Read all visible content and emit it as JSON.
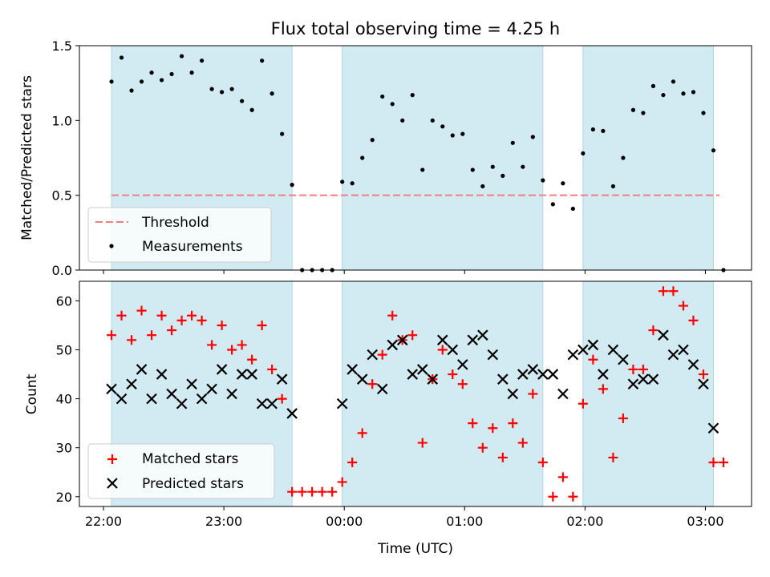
{
  "chart_data": {
    "type": "scatter",
    "title": "Flux total observing time = 4.25 h",
    "xlabel": "Time (UTC)",
    "x_tick_labels": [
      "22:00",
      "23:00",
      "00:00",
      "01:00",
      "02:00",
      "03:00"
    ],
    "x_ticks_min": [
      0,
      60,
      120,
      180,
      240,
      300
    ],
    "xlim_min": [
      -12,
      323
    ],
    "shaded_intervals_min": [
      [
        4,
        94
      ],
      [
        119,
        219
      ],
      [
        239,
        304
      ]
    ],
    "shade_color": "#add8e6",
    "panels": [
      {
        "ylabel": "Matched/Predicted stars",
        "ylim": [
          0,
          1.5
        ],
        "y_ticks": [
          0.0,
          0.5,
          1.0,
          1.5
        ],
        "y_tick_labels": [
          "0.0",
          "0.5",
          "1.0",
          "1.5"
        ],
        "legend": {
          "position": "lower-left",
          "entries": [
            "Threshold",
            "Measurements"
          ]
        },
        "threshold": {
          "name": "Threshold",
          "value": 0.5,
          "x_range_min": [
            4,
            307
          ],
          "color": "#f08080",
          "style": "dashed"
        },
        "series": [
          {
            "name": "Measurements",
            "marker": "dot",
            "color": "#000000",
            "x_min": [
              4,
              9,
              14,
              19,
              24,
              29,
              34,
              39,
              44,
              49,
              54,
              59,
              64,
              69,
              74,
              79,
              84,
              89,
              94,
              99,
              104,
              109,
              114,
              119,
              124,
              129,
              134,
              139,
              144,
              149,
              154,
              159,
              164,
              169,
              174,
              179,
              184,
              189,
              194,
              199,
              204,
              209,
              214,
              219,
              224,
              229,
              234,
              239,
              244,
              249,
              254,
              259,
              264,
              269,
              274,
              279,
              284,
              289,
              294,
              299,
              304,
              309
            ],
            "y": [
              1.26,
              1.42,
              1.2,
              1.26,
              1.32,
              1.27,
              1.31,
              1.43,
              1.32,
              1.4,
              1.21,
              1.19,
              1.21,
              1.13,
              1.07,
              1.4,
              1.18,
              0.91,
              0.57,
              0.0,
              0.0,
              0.0,
              0.0,
              0.59,
              0.58,
              0.75,
              0.87,
              1.16,
              1.11,
              1.0,
              1.17,
              0.67,
              1.0,
              0.96,
              0.9,
              0.91,
              0.67,
              0.56,
              0.69,
              0.63,
              0.85,
              0.69,
              0.89,
              0.6,
              0.44,
              0.58,
              0.41,
              0.78,
              0.94,
              0.93,
              0.56,
              0.75,
              1.07,
              1.05,
              1.23,
              1.17,
              1.26,
              1.18,
              1.19,
              1.05,
              0.8,
              0.0
            ]
          }
        ]
      },
      {
        "ylabel": "Count",
        "ylim": [
          18,
          64
        ],
        "y_ticks": [
          20,
          30,
          40,
          50,
          60
        ],
        "y_tick_labels": [
          "20",
          "30",
          "40",
          "50",
          "60"
        ],
        "legend": {
          "position": "lower-left",
          "entries": [
            "Matched stars",
            "Predicted stars"
          ]
        },
        "series": [
          {
            "name": "Matched stars",
            "marker": "plus",
            "color": "#ff0000",
            "x_min": [
              4,
              9,
              14,
              19,
              24,
              29,
              34,
              39,
              44,
              49,
              54,
              59,
              64,
              69,
              74,
              79,
              84,
              89,
              94,
              99,
              104,
              109,
              114,
              119,
              124,
              129,
              134,
              139,
              144,
              149,
              154,
              159,
              164,
              169,
              174,
              179,
              184,
              189,
              194,
              199,
              204,
              209,
              214,
              219,
              224,
              229,
              234,
              239,
              244,
              249,
              254,
              259,
              264,
              269,
              274,
              279,
              284,
              289,
              294,
              299,
              304,
              309
            ],
            "y": [
              53,
              57,
              52,
              58,
              53,
              57,
              54,
              56,
              57,
              56,
              51,
              55,
              50,
              51,
              48,
              55,
              46,
              40,
              21,
              21,
              21,
              21,
              21,
              23,
              27,
              33,
              43,
              49,
              57,
              52,
              53,
              31,
              44,
              50,
              45,
              43,
              35,
              30,
              34,
              28,
              35,
              31,
              41,
              27,
              20,
              24,
              20,
              39,
              48,
              42,
              28,
              36,
              46,
              46,
              54,
              62,
              62,
              59,
              56,
              45,
              27,
              27
            ]
          },
          {
            "name": "Predicted stars",
            "marker": "x",
            "color": "#000000",
            "x_min": [
              4,
              9,
              14,
              19,
              24,
              29,
              34,
              39,
              44,
              49,
              54,
              59,
              64,
              69,
              74,
              79,
              84,
              89,
              94,
              119,
              124,
              129,
              134,
              139,
              144,
              149,
              154,
              159,
              164,
              169,
              174,
              179,
              184,
              189,
              194,
              199,
              204,
              209,
              214,
              219,
              224,
              229,
              234,
              239,
              244,
              249,
              254,
              259,
              264,
              269,
              274,
              279,
              284,
              289,
              294,
              299,
              304
            ],
            "y": [
              42,
              40,
              43,
              46,
              40,
              45,
              41,
              39,
              43,
              40,
              42,
              46,
              41,
              45,
              45,
              39,
              39,
              44,
              37,
              39,
              46,
              44,
              49,
              42,
              51,
              52,
              45,
              46,
              44,
              52,
              50,
              47,
              52,
              53,
              49,
              44,
              41,
              45,
              46,
              45,
              45,
              41,
              49,
              50,
              51,
              45,
              50,
              48,
              43,
              44,
              44,
              53,
              49,
              50,
              47,
              43,
              34
            ]
          }
        ]
      }
    ]
  }
}
